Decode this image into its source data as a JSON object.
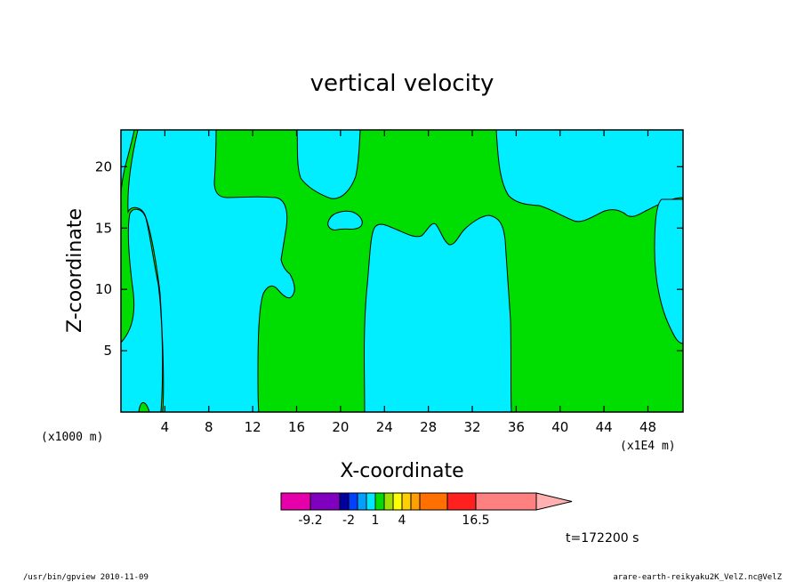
{
  "chart_data": {
    "type": "heatmap",
    "title": "vertical velocity",
    "xlabel": "X-coordinate",
    "ylabel": "Z-coordinate",
    "x_unit": "(x1E4 m)",
    "y_unit": "(x1000 m)",
    "xlim": [
      0,
      51.2
    ],
    "ylim": [
      0,
      23
    ],
    "x_ticks": [
      4,
      8,
      12,
      16,
      20,
      24,
      28,
      32,
      36,
      40,
      44,
      48
    ],
    "y_ticks": [
      5,
      10,
      15,
      20
    ],
    "colors": {
      "negative": "#00eeff",
      "positive": "#00dd00"
    },
    "colorbar": {
      "colors": [
        "#e600aa",
        "#8000c0",
        "#0000a0",
        "#0040ff",
        "#00a0ff",
        "#00e8ff",
        "#00dd00",
        "#a0e000",
        "#ffff00",
        "#ffd000",
        "#ffa000",
        "#ff7000",
        "#ff2020",
        "#ff8080"
      ],
      "extend_color": "#ffb0b0",
      "labels": [
        "-9.2",
        "-2",
        "1",
        "4",
        "16.5"
      ]
    },
    "time_label": "t=172200 s",
    "footer_left": "/usr/bin/gpview  2010-11-09",
    "footer_right": "arare-earth-reikyaku2K_VelZ.nc@VelZ"
  }
}
